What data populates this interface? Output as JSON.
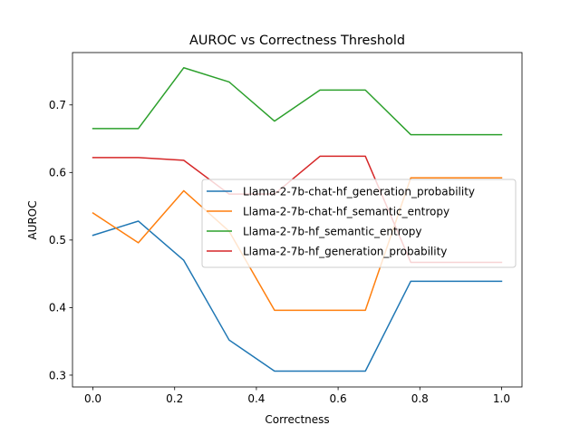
{
  "chart_data": {
    "type": "line",
    "title": "AUROC vs Correctness Threshold",
    "xlabel": "Correctness",
    "ylabel": "AUROC",
    "xlim": [
      -0.05,
      1.05
    ],
    "ylim": [
      0.2825,
      0.7775
    ],
    "xticks": [
      0.0,
      0.2,
      0.4,
      0.6,
      0.8,
      1.0
    ],
    "xtick_labels": [
      "0.0",
      "0.2",
      "0.4",
      "0.6",
      "0.8",
      "1.0"
    ],
    "yticks": [
      0.3,
      0.4,
      0.5,
      0.6,
      0.7
    ],
    "ytick_labels": [
      "0.3",
      "0.4",
      "0.5",
      "0.6",
      "0.7"
    ],
    "grid": false,
    "legend_position": "center-right",
    "x": [
      0.0,
      0.1111,
      0.2222,
      0.3333,
      0.4444,
      0.5556,
      0.6667,
      0.7778,
      0.8889,
      1.0
    ],
    "series": [
      {
        "name": "Llama-2-7b-chat-hf_generation_probability",
        "color": "#1f77b4",
        "values": [
          0.507,
          0.528,
          0.47,
          0.352,
          0.306,
          0.306,
          0.306,
          0.439,
          0.439,
          0.439
        ]
      },
      {
        "name": "Llama-2-7b-chat-hf_semantic_entropy",
        "color": "#ff7f0e",
        "values": [
          0.54,
          0.496,
          0.573,
          0.513,
          0.396,
          0.396,
          0.396,
          0.592,
          0.592,
          0.592
        ]
      },
      {
        "name": "Llama-2-7b-hf_semantic_entropy",
        "color": "#2ca02c",
        "values": [
          0.665,
          0.665,
          0.755,
          0.734,
          0.676,
          0.722,
          0.722,
          0.656,
          0.656,
          0.656
        ]
      },
      {
        "name": "Llama-2-7b-hf_generation_probability",
        "color": "#d62728",
        "values": [
          0.622,
          0.622,
          0.618,
          0.568,
          0.568,
          0.624,
          0.624,
          0.467,
          0.467,
          0.467
        ]
      }
    ]
  }
}
